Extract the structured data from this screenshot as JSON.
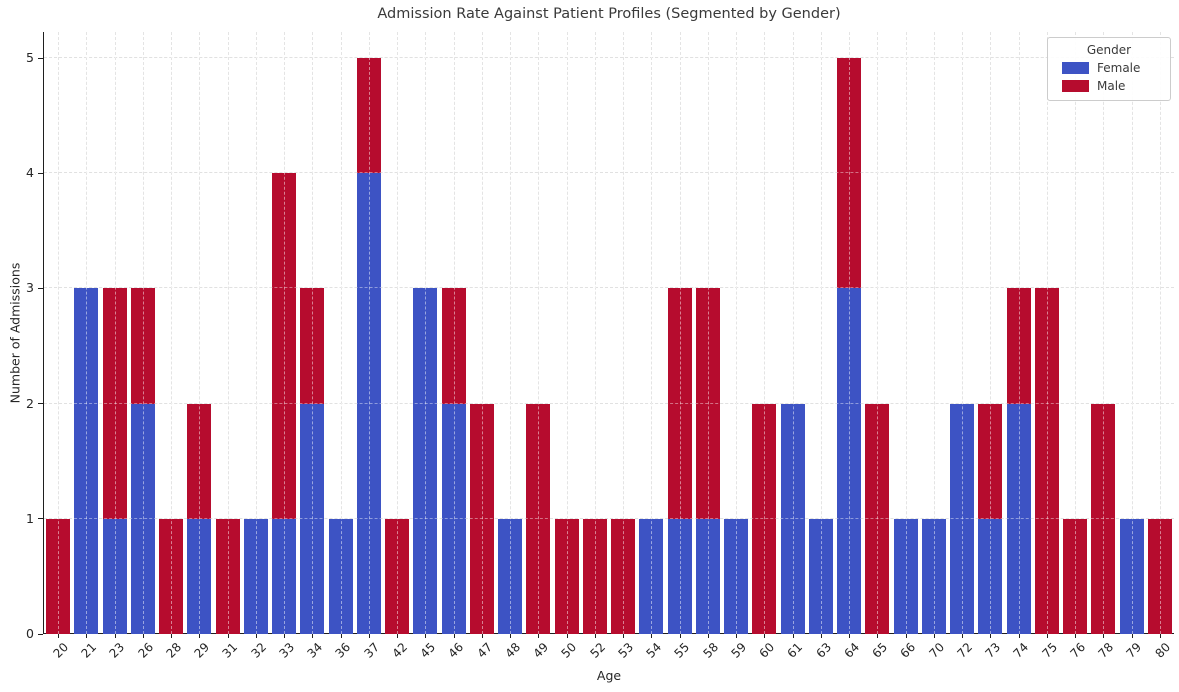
{
  "title": "Admission Rate Against Patient Profiles (Segmented by Gender)",
  "colors": {
    "female": "#3D53C4",
    "male": "#B60C2E",
    "grid": "#cccccc",
    "text": "#3a3a3a"
  },
  "legend": {
    "title": "Gender",
    "entries": [
      "Female",
      "Male"
    ]
  },
  "chart_data": {
    "type": "bar",
    "stacked": true,
    "title": "Admission Rate Against Patient Profiles (Segmented by Gender)",
    "xlabel": "Age",
    "ylabel": "Number of Admissions",
    "categories": [
      20,
      21,
      23,
      26,
      28,
      29,
      31,
      32,
      33,
      34,
      36,
      37,
      42,
      45,
      46,
      47,
      48,
      49,
      50,
      52,
      53,
      54,
      55,
      58,
      59,
      60,
      61,
      63,
      64,
      65,
      66,
      70,
      72,
      73,
      74,
      75,
      76,
      78,
      79,
      80
    ],
    "series": [
      {
        "name": "Female",
        "color": "#3D53C4",
        "values": [
          0,
          3,
          1,
          2,
          0,
          1,
          0,
          1,
          1,
          2,
          1,
          4,
          0,
          3,
          2,
          0,
          1,
          0,
          0,
          0,
          0,
          1,
          1,
          1,
          1,
          0,
          2,
          1,
          3,
          0,
          1,
          1,
          2,
          1,
          2,
          0,
          0,
          0,
          1,
          0
        ]
      },
      {
        "name": "Male",
        "color": "#B60C2E",
        "values": [
          1,
          0,
          2,
          1,
          1,
          1,
          1,
          0,
          3,
          1,
          0,
          1,
          1,
          0,
          1,
          2,
          0,
          2,
          1,
          1,
          1,
          0,
          2,
          2,
          0,
          2,
          0,
          0,
          2,
          2,
          0,
          0,
          0,
          1,
          1,
          3,
          1,
          2,
          0,
          1
        ]
      }
    ],
    "yticks": [
      0,
      1,
      2,
      3,
      4,
      5
    ],
    "ylim": [
      0,
      5.22
    ],
    "grid": "both-dashed",
    "legend_position": "upper-right"
  }
}
